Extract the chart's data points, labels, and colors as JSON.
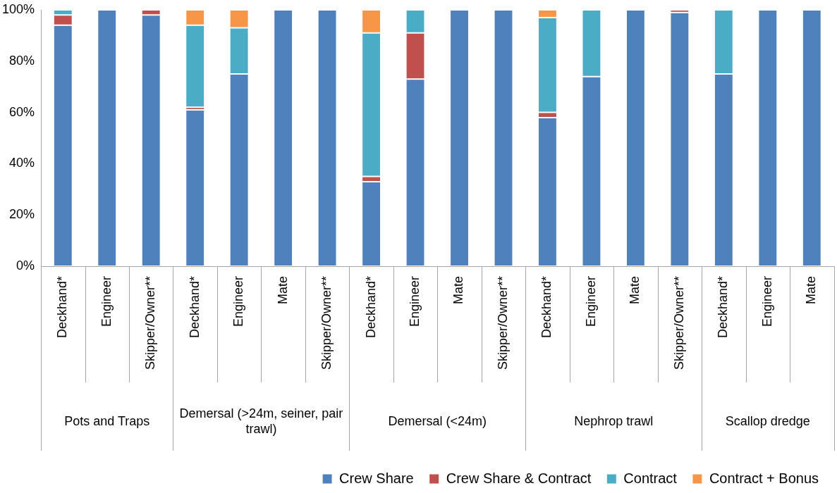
{
  "chart_data": {
    "type": "bar",
    "stacked": true,
    "categories": [
      "Deckhand*",
      "Engineer",
      "Skipper/Owner**",
      "Deckhand*",
      "Engineer",
      "Mate",
      "Skipper/Owner**",
      "Deckhand*",
      "Engineer",
      "Mate",
      "Skipper/Owner**",
      "Deckhand*",
      "Engineer",
      "Mate",
      "Skipper/Owner**",
      "Deckhand*",
      "Engineer",
      "Mate"
    ],
    "annotations": [
      "Pots and Traps",
      "Demersal (>24m, seiner, pair trawl)",
      "Demersal (<24m)",
      "Nephrop trawl",
      "Scallop dredge"
    ],
    "series": [
      {
        "name": "Crew Share",
        "color": "#4f81bd",
        "values": [
          94,
          100,
          98,
          61,
          75,
          100,
          100,
          33,
          73,
          100,
          100,
          58,
          74,
          100,
          99,
          75,
          100,
          100
        ]
      },
      {
        "name": "Crew Share & Contract",
        "color": "#c0504d",
        "values": [
          4,
          0,
          2,
          1,
          0,
          0,
          0,
          2,
          18,
          0,
          0,
          2,
          0,
          0,
          1,
          0,
          0,
          0
        ]
      },
      {
        "name": "Contract",
        "color": "#4bacc6",
        "values": [
          2,
          0,
          0,
          32,
          18,
          0,
          0,
          56,
          9,
          0,
          0,
          37,
          26,
          0,
          0,
          25,
          0,
          0
        ]
      },
      {
        "name": "Contract + Bonus",
        "color": "#f79646",
        "values": [
          0,
          0,
          0,
          6,
          7,
          0,
          0,
          9,
          0,
          0,
          0,
          3,
          0,
          0,
          0,
          0,
          0,
          0
        ]
      }
    ],
    "ylim": [
      0,
      100
    ],
    "yticks": [
      {
        "value": 0,
        "label": "0%"
      },
      {
        "value": 20,
        "label": "20%"
      },
      {
        "value": 40,
        "label": "40%"
      },
      {
        "value": 60,
        "label": "60%"
      },
      {
        "value": 80,
        "label": "80%"
      },
      {
        "value": 100,
        "label": "100%"
      }
    ],
    "grid": false,
    "legend": "bottom"
  }
}
